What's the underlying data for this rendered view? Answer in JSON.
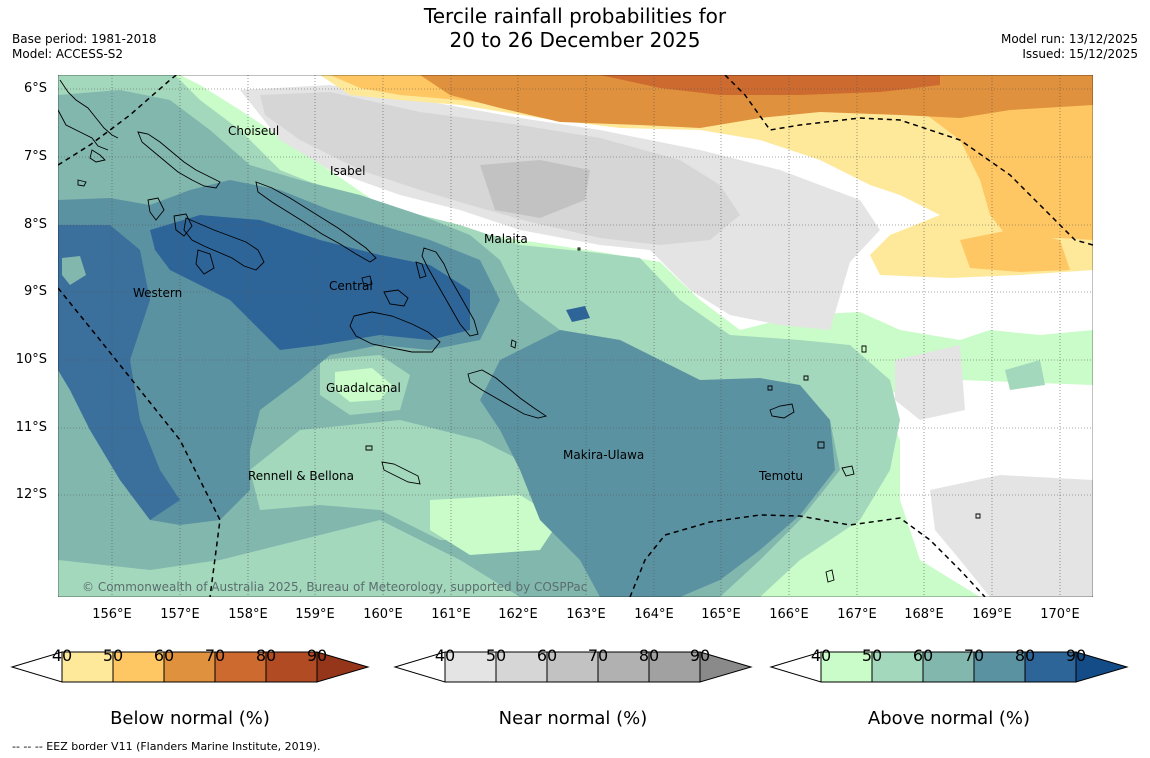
{
  "header": {
    "title_line1": "Tercile rainfall probabilities for",
    "title_line2": "20 to 26 December 2025",
    "base_period": "Base period: 1981-2018",
    "model": "Model: ACCESS-S2",
    "model_run": "Model run: 13/12/2025",
    "issued": "Issued: 15/12/2025"
  },
  "map": {
    "lat_labels": [
      "6°S",
      "7°S",
      "8°S",
      "9°S",
      "10°S",
      "11°S",
      "12°S"
    ],
    "lon_labels": [
      "156°E",
      "157°E",
      "158°E",
      "159°E",
      "160°E",
      "161°E",
      "162°E",
      "163°E",
      "164°E",
      "165°E",
      "166°E",
      "167°E",
      "168°E",
      "169°E",
      "170°E"
    ],
    "provinces": [
      "Choiseul",
      "Isabel",
      "Malaita",
      "Western",
      "Central",
      "Guadalcanal",
      "Makira-Ulawa",
      "Rennell & Bellona",
      "Temotu"
    ],
    "copyright": "© Commonwealth of Australia 2025, Bureau of Meteorology, supported by COSPPac"
  },
  "legend": {
    "below": {
      "title": "Below normal (%)",
      "ticks": [
        "40",
        "50",
        "60",
        "70",
        "80",
        "90"
      ],
      "colors": [
        "#fee99b",
        "#fec763",
        "#e0913d",
        "#cd6a30",
        "#b14b23",
        "#95351a"
      ]
    },
    "near": {
      "title": "Near normal (%)",
      "ticks": [
        "40",
        "50",
        "60",
        "70",
        "80",
        "90"
      ],
      "colors": [
        "#e4e4e4",
        "#d6d6d6",
        "#c2c2c2",
        "#b1b1b1",
        "#a1a1a1",
        "#8a8a8a"
      ]
    },
    "above": {
      "title": "Above normal (%)",
      "ticks": [
        "40",
        "50",
        "60",
        "70",
        "80",
        "90"
      ],
      "colors": [
        "#c9fcc8",
        "#a4d8bc",
        "#82b7ae",
        "#5b92a2",
        "#2e6599",
        "#134c86"
      ]
    }
  },
  "footnote": "--  --  -- EEZ border V11 (Flanders Marine Institute, 2019)."
}
